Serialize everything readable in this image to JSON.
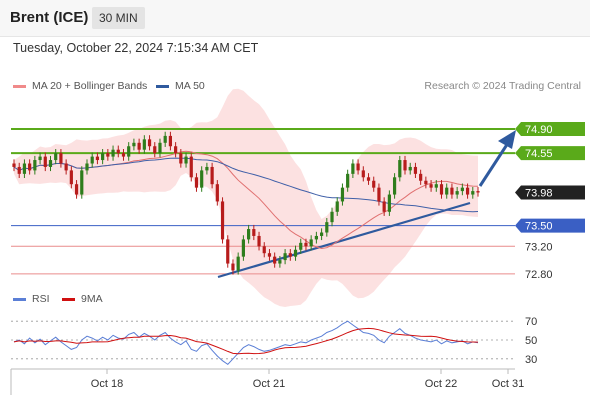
{
  "header": {
    "title": "Brent (ICE)",
    "timeframe": "30 MIN"
  },
  "timestamp": "Tuesday, October 22, 2024 7:15:34 AM CET",
  "legend": [
    {
      "label": "MA 20 + Bollinger Bands",
      "color": "#f08a8a"
    },
    {
      "label": "MA 50",
      "color": "#2f5a9e"
    }
  ],
  "credit": "Research © 2024 Trading Central",
  "colors": {
    "up": "#2e7d1c",
    "down": "#b71c1c",
    "resistance": "#5aaa1a",
    "support_blue": "#3a5fc4",
    "support_red": "#e98c8c",
    "bands": "#fbd7d7",
    "ma20": "#e07070",
    "ma50": "#4060a8",
    "arrow": "#2f5a9e",
    "current": "#222222"
  },
  "levels": [
    {
      "label": "74.90",
      "value": 74.9,
      "style": "resistance"
    },
    {
      "label": "74.55",
      "value": 74.55,
      "style": "resistance"
    },
    {
      "label": "73.98",
      "value": 73.98,
      "style": "current"
    },
    {
      "label": "73.50",
      "value": 73.5,
      "style": "support_blue"
    },
    {
      "label": "73.20",
      "value": 73.2,
      "style": "support_red"
    },
    {
      "label": "72.80",
      "value": 72.8,
      "style": "support_red"
    }
  ],
  "x_labels": [
    "Oct 18",
    "Oct 21",
    "Oct 22",
    "Oct 31"
  ],
  "rsi": {
    "legend": [
      {
        "label": "RSI",
        "color": "#5b7fd6"
      },
      {
        "label": "9MA",
        "color": "#d01010"
      }
    ],
    "ticks": [
      "70",
      "50",
      "30"
    ]
  },
  "chart_data": {
    "type": "candlestick",
    "title": "Brent (ICE)",
    "interval": "30 MIN",
    "ylim": [
      72.55,
      75.1
    ],
    "closes": [
      74.35,
      74.25,
      74.4,
      74.3,
      74.45,
      74.5,
      74.35,
      74.45,
      74.55,
      74.4,
      74.3,
      74.1,
      73.95,
      74.3,
      74.4,
      74.5,
      74.45,
      74.55,
      74.5,
      74.6,
      74.55,
      74.5,
      74.65,
      74.7,
      74.6,
      74.75,
      74.65,
      74.55,
      74.7,
      74.8,
      74.65,
      74.55,
      74.4,
      74.5,
      74.2,
      74.05,
      74.3,
      74.35,
      74.1,
      73.85,
      73.3,
      72.95,
      72.85,
      73.05,
      73.3,
      73.45,
      73.35,
      73.2,
      73.1,
      73.05,
      72.95,
      73.0,
      73.1,
      73.05,
      73.15,
      73.25,
      73.2,
      73.3,
      73.35,
      73.4,
      73.55,
      73.7,
      73.85,
      74.05,
      74.25,
      74.4,
      74.3,
      74.2,
      74.15,
      74.05,
      73.85,
      73.7,
      73.95,
      74.2,
      74.45,
      74.3,
      74.35,
      74.25,
      74.15,
      74.1,
      74.05,
      74.1,
      73.95,
      74.05,
      73.95,
      74.0,
      74.05,
      73.95,
      74.0,
      73.98
    ],
    "rsi": [
      48,
      50,
      46,
      52,
      47,
      51,
      45,
      49,
      53,
      48,
      44,
      40,
      42,
      50,
      54,
      52,
      49,
      53,
      50,
      55,
      52,
      51,
      56,
      58,
      53,
      57,
      54,
      50,
      55,
      58,
      52,
      48,
      45,
      49,
      40,
      38,
      44,
      46,
      39,
      33,
      28,
      24,
      30,
      36,
      42,
      45,
      43,
      40,
      38,
      39,
      41,
      43,
      45,
      44,
      46,
      48,
      47,
      50,
      52,
      54,
      58,
      60,
      63,
      67,
      70,
      66,
      62,
      58,
      57,
      55,
      50,
      47,
      54,
      58,
      62,
      57,
      55,
      52,
      50,
      49,
      48,
      50,
      46,
      49,
      47,
      48,
      49,
      46,
      48,
      47
    ]
  }
}
